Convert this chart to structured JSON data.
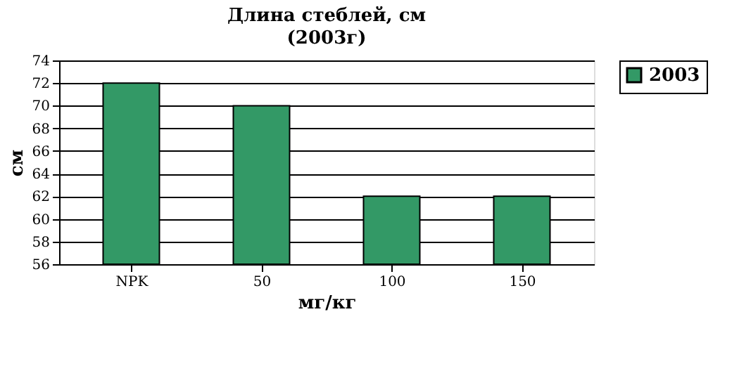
{
  "chart_data": {
    "type": "bar",
    "title": "Длина стеблей, см",
    "subtitle": "(2003г)",
    "xlabel": "мг/кг",
    "ylabel": "см",
    "categories": [
      "NPK",
      "50",
      "100",
      "150"
    ],
    "series": [
      {
        "name": "2003",
        "color": "#339966",
        "values": [
          72,
          70,
          62,
          62
        ]
      }
    ],
    "ylim": [
      56,
      74
    ],
    "yticks": [
      56,
      58,
      60,
      62,
      64,
      66,
      68,
      70,
      72,
      74
    ],
    "grid": "y",
    "legend": "right"
  }
}
